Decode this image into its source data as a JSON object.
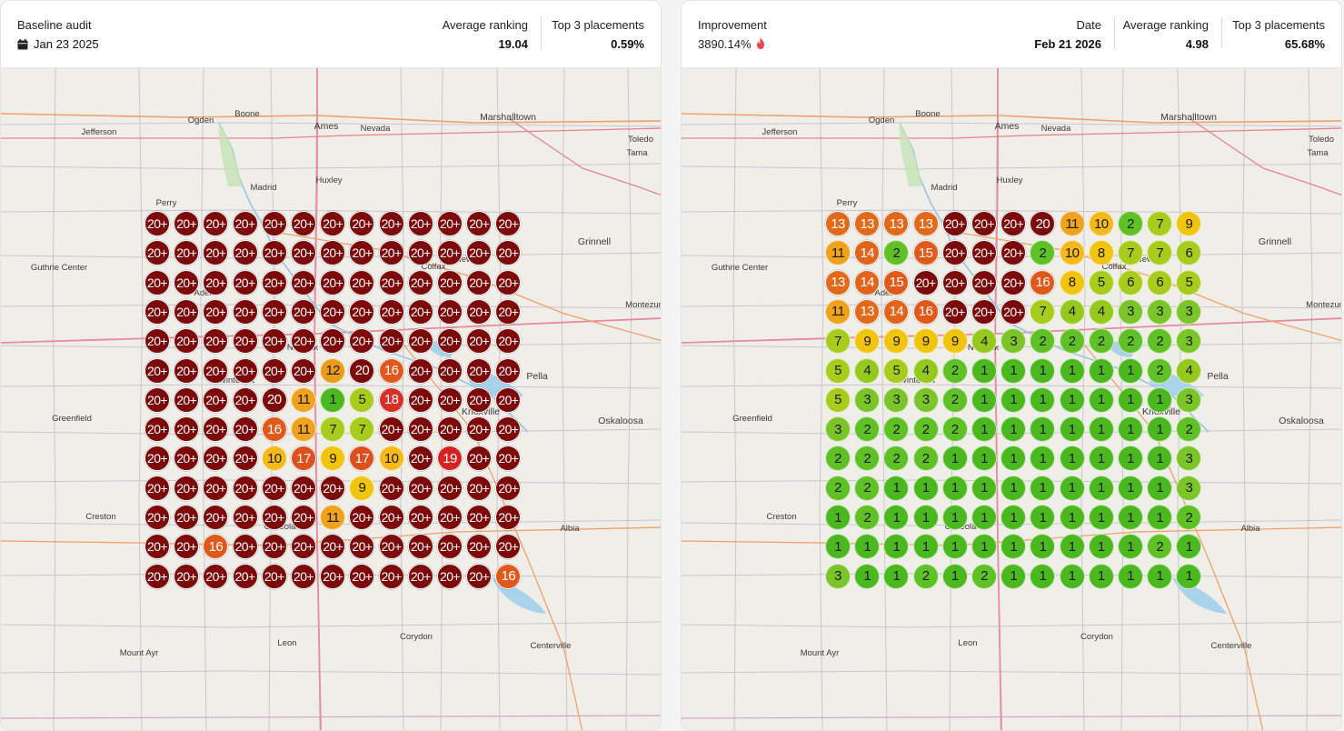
{
  "left": {
    "title": "Baseline audit",
    "date": "Jan 23 2025",
    "metrics": [
      {
        "label": "Average ranking",
        "value": "19.04"
      },
      {
        "label": "Top 3 placements",
        "value": "0.59%"
      }
    ],
    "grid": [
      [
        "20+",
        "20+",
        "20+",
        "20+",
        "20+",
        "20+",
        "20+",
        "20+",
        "20+",
        "20+",
        "20+",
        "20+",
        "20+"
      ],
      [
        "20+",
        "20+",
        "20+",
        "20+",
        "20+",
        "20+",
        "20+",
        "20+",
        "20+",
        "20+",
        "20+",
        "20+",
        "20+"
      ],
      [
        "20+",
        "20+",
        "20+",
        "20+",
        "20+",
        "20+",
        "20+",
        "20+",
        "20+",
        "20+",
        "20+",
        "20+",
        "20+"
      ],
      [
        "20+",
        "20+",
        "20+",
        "20+",
        "20+",
        "20+",
        "20+",
        "20+",
        "20+",
        "20+",
        "20+",
        "20+",
        "20+"
      ],
      [
        "20+",
        "20+",
        "20+",
        "20+",
        "20+",
        "20+",
        "20+",
        "20+",
        "20+",
        "20+",
        "20+",
        "20+",
        "20+"
      ],
      [
        "20+",
        "20+",
        "20+",
        "20+",
        "20+",
        "20+",
        "12",
        "20",
        "16",
        "20+",
        "20+",
        "20+",
        "20+"
      ],
      [
        "20+",
        "20+",
        "20+",
        "20+",
        "20",
        "11",
        "1",
        "5",
        "18",
        "20+",
        "20+",
        "20+",
        "20+"
      ],
      [
        "20+",
        "20+",
        "20+",
        "20+",
        "16",
        "11",
        "7",
        "7",
        "20+",
        "20+",
        "20+",
        "20+",
        "20+"
      ],
      [
        "20+",
        "20+",
        "20+",
        "20+",
        "10",
        "17",
        "9",
        "17",
        "10",
        "20+",
        "19",
        "20+",
        "20+"
      ],
      [
        "20+",
        "20+",
        "20+",
        "20+",
        "20+",
        "20+",
        "20+",
        "9",
        "20+",
        "20+",
        "20+",
        "20+",
        "20+"
      ],
      [
        "20+",
        "20+",
        "20+",
        "20+",
        "20+",
        "20+",
        "11",
        "20+",
        "20+",
        "20+",
        "20+",
        "20+",
        "20+"
      ],
      [
        "20+",
        "20+",
        "16",
        "20+",
        "20+",
        "20+",
        "20+",
        "20+",
        "20+",
        "20+",
        "20+",
        "20+",
        "20+"
      ],
      [
        "20+",
        "20+",
        "20+",
        "20+",
        "20+",
        "20+",
        "20+",
        "20+",
        "20+",
        "20+",
        "20+",
        "20+",
        "16"
      ]
    ]
  },
  "right": {
    "title": "Improvement",
    "improvement": "3890.14%",
    "flame_icon_color": "#e5484d",
    "metrics": [
      {
        "label": "Date",
        "value": "Feb 21 2026"
      },
      {
        "label": "Average ranking",
        "value": "4.98"
      },
      {
        "label": "Top 3 placements",
        "value": "65.68%"
      }
    ],
    "grid": [
      [
        "13",
        "13",
        "13",
        "13",
        "20+",
        "20+",
        "20+",
        "20",
        "11",
        "10",
        "2",
        "7",
        "9"
      ],
      [
        "11",
        "14",
        "2",
        "15",
        "20+",
        "20+",
        "20+",
        "2",
        "10",
        "8",
        "7",
        "7",
        "6"
      ],
      [
        "13",
        "14",
        "15",
        "20+",
        "20+",
        "20+",
        "20+",
        "16",
        "8",
        "5",
        "6",
        "6",
        "5"
      ],
      [
        "11",
        "13",
        "14",
        "16",
        "20+",
        "20+",
        "20+",
        "7",
        "4",
        "4",
        "3",
        "3",
        "3"
      ],
      [
        "7",
        "9",
        "9",
        "9",
        "9",
        "4",
        "3",
        "2",
        "2",
        "2",
        "2",
        "2",
        "3"
      ],
      [
        "5",
        "4",
        "5",
        "4",
        "2",
        "1",
        "1",
        "1",
        "1",
        "1",
        "1",
        "2",
        "4"
      ],
      [
        "5",
        "3",
        "3",
        "3",
        "2",
        "1",
        "1",
        "1",
        "1",
        "1",
        "1",
        "1",
        "3"
      ],
      [
        "3",
        "2",
        "2",
        "2",
        "2",
        "1",
        "1",
        "1",
        "1",
        "1",
        "1",
        "1",
        "2"
      ],
      [
        "2",
        "2",
        "2",
        "2",
        "1",
        "1",
        "1",
        "1",
        "1",
        "1",
        "1",
        "1",
        "3"
      ],
      [
        "2",
        "2",
        "1",
        "1",
        "1",
        "1",
        "1",
        "1",
        "1",
        "1",
        "1",
        "1",
        "3"
      ],
      [
        "1",
        "2",
        "1",
        "1",
        "1",
        "1",
        "1",
        "1",
        "1",
        "1",
        "1",
        "1",
        "2"
      ],
      [
        "1",
        "1",
        "1",
        "1",
        "1",
        "1",
        "1",
        "1",
        "1",
        "1",
        "1",
        "2",
        "1"
      ],
      [
        "3",
        "1",
        "1",
        "2",
        "1",
        "2",
        "1",
        "1",
        "1",
        "1",
        "1",
        "1",
        "1"
      ]
    ]
  },
  "map_labels": [
    "Ogden",
    "Boone",
    "Ames",
    "Nevada",
    "Marshalltown",
    "Jefferson",
    "Toledo",
    "Tama",
    "Huxley",
    "Madrid",
    "Perry",
    "Grinnell",
    "Guthrie Center",
    "Adel",
    "Montezuma",
    "Norwalk",
    "Pella",
    "Greenfield",
    "Knoxville",
    "Oskaloosa",
    "Creston",
    "Osceola",
    "Albia",
    "Leon",
    "Corydon",
    "Mount Ayr",
    "Centerville",
    "Colfax",
    "Newton",
    "Winterset"
  ],
  "rank_colors": {
    "r1": "#4cb81f",
    "r2": "#5fc126",
    "r3": "#7bc52a",
    "r4": "#96c91e",
    "r5": "#a8cc1c",
    "r6": "#a8cc1c",
    "r7": "#a8cc1c",
    "r8": "#f1c40f",
    "r9": "#f1c40f",
    "r10": "#f5b919",
    "r11": "#f0a21c",
    "r12": "#eb9b18",
    "r13": "#e2691a",
    "r14": "#e2631a",
    "r15": "#e25a1a",
    "r16": "#e0591a",
    "r17": "#dd4f1b",
    "r18": "#d63028",
    "r19": "#d52222",
    "r20": "#7d0a0a",
    "r20plus": "#7d0a0a"
  }
}
